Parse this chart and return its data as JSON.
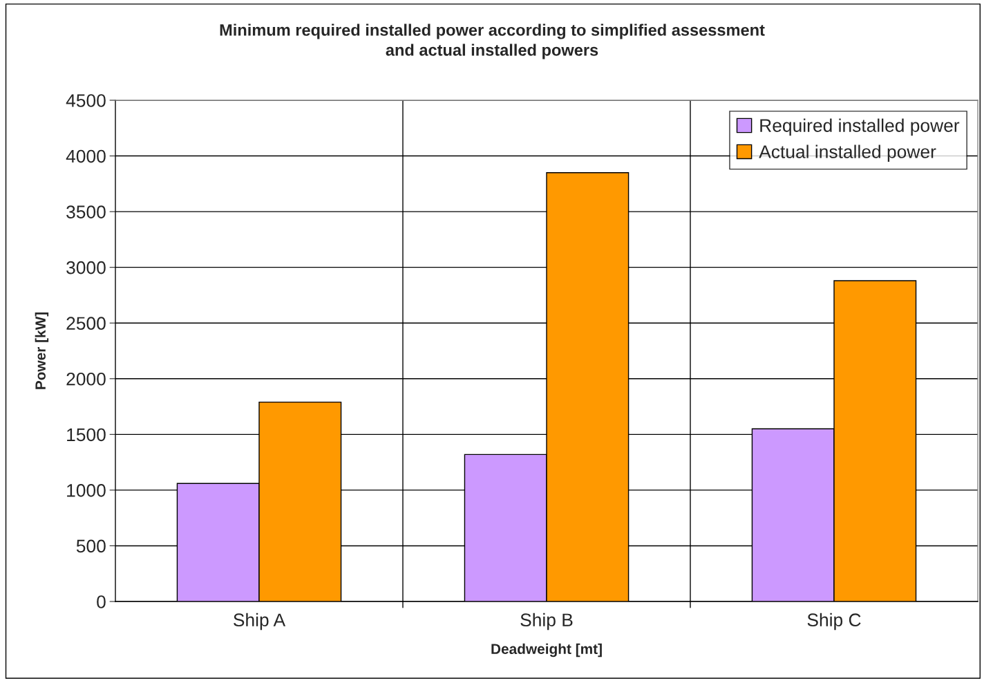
{
  "chart_data": {
    "type": "bar",
    "title": "Minimum required installed power according to simplified assessment\nand actual installed powers",
    "xlabel": "Deadweight [mt]",
    "ylabel": "Power [kW]",
    "categories": [
      "Ship A",
      "Ship B",
      "Ship C"
    ],
    "series": [
      {
        "name": "Required installed power",
        "color": "#cc99ff",
        "values": [
          1060,
          1320,
          1550
        ]
      },
      {
        "name": "Actual installed power",
        "color": "#ff9900",
        "values": [
          1790,
          3850,
          2880
        ]
      }
    ],
    "ylim": [
      0,
      4500
    ],
    "yticks": [
      0,
      500,
      1000,
      1500,
      2000,
      2500,
      3000,
      3500,
      4000,
      4500
    ],
    "grid": true,
    "legend": "top right"
  }
}
